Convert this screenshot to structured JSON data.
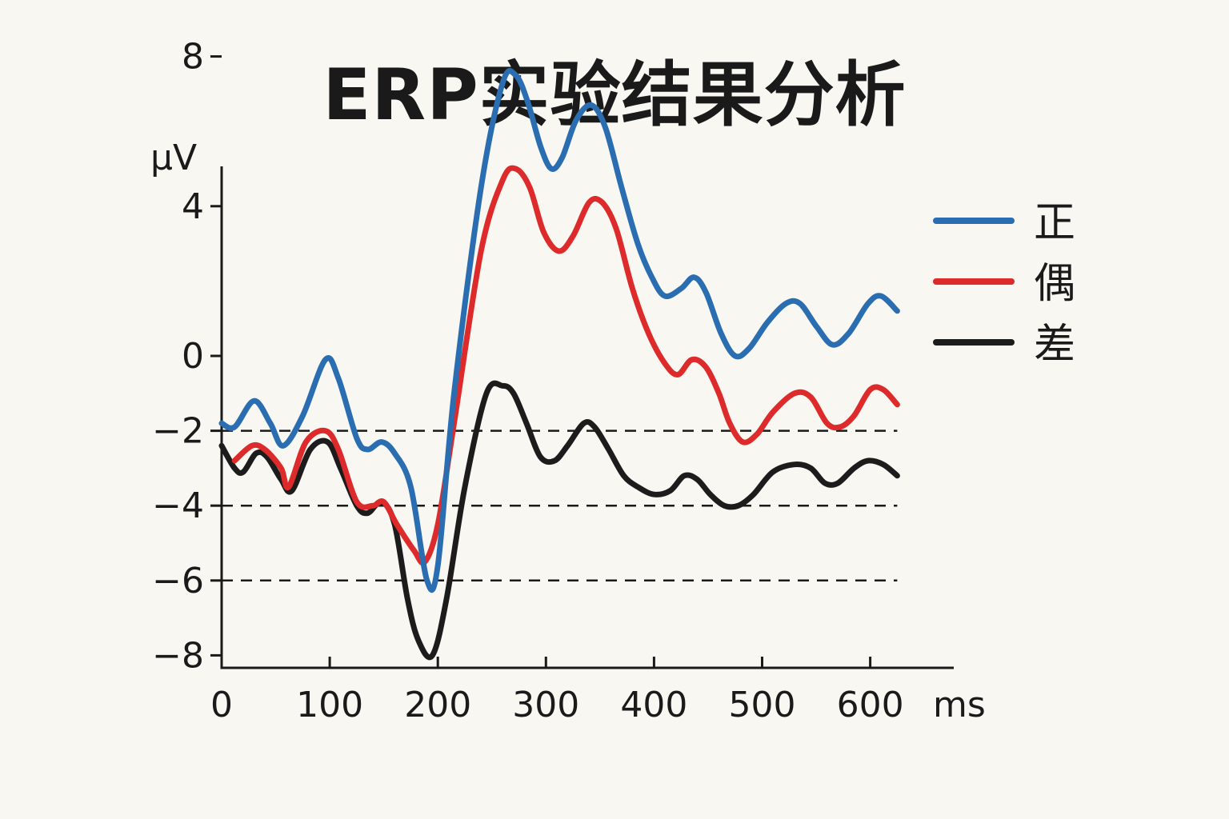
{
  "chart_data": {
    "type": "line",
    "title": "ERP实验结果分析",
    "xlabel": "ms",
    "ylabel": "μV",
    "xlim": [
      0,
      625
    ],
    "ylim": [
      -8,
      9
    ],
    "x_ticks": [
      0,
      100,
      200,
      300,
      400,
      500,
      600
    ],
    "x_tick_labels": [
      "0",
      "100",
      "200",
      "300",
      "400",
      "500",
      "600"
    ],
    "y_ticks": [
      8,
      4,
      0,
      -2,
      -4,
      -6,
      -8
    ],
    "y_tick_labels": [
      "8",
      "4",
      "0",
      "−2",
      "−4",
      "−6",
      "−8"
    ],
    "reference_lines": [
      -2,
      -4,
      -6
    ],
    "legend_position": "right",
    "series": [
      {
        "name": "正",
        "color": "#2a6db0",
        "points": [
          [
            0,
            -1.8
          ],
          [
            12,
            -1.9
          ],
          [
            30,
            -1.2
          ],
          [
            45,
            -1.8
          ],
          [
            57,
            -2.4
          ],
          [
            75,
            -1.6
          ],
          [
            96,
            -0.1
          ],
          [
            108,
            -0.6
          ],
          [
            125,
            -2.2
          ],
          [
            135,
            -2.5
          ],
          [
            148,
            -2.3
          ],
          [
            160,
            -2.6
          ],
          [
            175,
            -3.5
          ],
          [
            190,
            -6.0
          ],
          [
            200,
            -5.6
          ],
          [
            215,
            -1.0
          ],
          [
            240,
            4.5
          ],
          [
            260,
            7.3
          ],
          [
            272,
            7.5
          ],
          [
            283,
            6.8
          ],
          [
            295,
            5.6
          ],
          [
            305,
            5.0
          ],
          [
            315,
            5.3
          ],
          [
            328,
            6.3
          ],
          [
            342,
            6.7
          ],
          [
            355,
            6.1
          ],
          [
            370,
            4.5
          ],
          [
            385,
            3.0
          ],
          [
            398,
            2.1
          ],
          [
            410,
            1.6
          ],
          [
            425,
            1.8
          ],
          [
            437,
            2.1
          ],
          [
            448,
            1.7
          ],
          [
            462,
            0.6
          ],
          [
            475,
            0.0
          ],
          [
            488,
            0.2
          ],
          [
            505,
            0.9
          ],
          [
            522,
            1.4
          ],
          [
            535,
            1.4
          ],
          [
            550,
            0.8
          ],
          [
            565,
            0.3
          ],
          [
            580,
            0.6
          ],
          [
            598,
            1.4
          ],
          [
            610,
            1.6
          ],
          [
            625,
            1.2
          ]
        ]
      },
      {
        "name": "偶",
        "color": "#dd2b2b",
        "points": [
          [
            12,
            -2.8
          ],
          [
            28,
            -2.4
          ],
          [
            40,
            -2.5
          ],
          [
            55,
            -3.0
          ],
          [
            62,
            -3.5
          ],
          [
            78,
            -2.3
          ],
          [
            96,
            -2.0
          ],
          [
            108,
            -2.5
          ],
          [
            125,
            -3.9
          ],
          [
            140,
            -4.0
          ],
          [
            150,
            -3.9
          ],
          [
            162,
            -4.5
          ],
          [
            178,
            -5.2
          ],
          [
            188,
            -5.5
          ],
          [
            200,
            -4.5
          ],
          [
            215,
            -1.8
          ],
          [
            240,
            2.8
          ],
          [
            260,
            4.7
          ],
          [
            272,
            5.0
          ],
          [
            285,
            4.5
          ],
          [
            298,
            3.3
          ],
          [
            312,
            2.8
          ],
          [
            325,
            3.2
          ],
          [
            340,
            4.1
          ],
          [
            352,
            4.1
          ],
          [
            365,
            3.4
          ],
          [
            380,
            1.8
          ],
          [
            395,
            0.6
          ],
          [
            410,
            -0.2
          ],
          [
            422,
            -0.5
          ],
          [
            435,
            -0.1
          ],
          [
            448,
            -0.3
          ],
          [
            460,
            -1.0
          ],
          [
            470,
            -1.8
          ],
          [
            482,
            -2.3
          ],
          [
            495,
            -2.1
          ],
          [
            510,
            -1.5
          ],
          [
            530,
            -1.0
          ],
          [
            545,
            -1.1
          ],
          [
            560,
            -1.8
          ],
          [
            572,
            -1.9
          ],
          [
            585,
            -1.6
          ],
          [
            600,
            -0.9
          ],
          [
            612,
            -0.9
          ],
          [
            625,
            -1.3
          ]
        ]
      },
      {
        "name": "差",
        "color": "#1c1c1c",
        "points": [
          [
            0,
            -2.4
          ],
          [
            12,
            -3.0
          ],
          [
            20,
            -3.1
          ],
          [
            32,
            -2.6
          ],
          [
            42,
            -2.7
          ],
          [
            55,
            -3.3
          ],
          [
            65,
            -3.6
          ],
          [
            82,
            -2.5
          ],
          [
            98,
            -2.3
          ],
          [
            110,
            -3.0
          ],
          [
            125,
            -4.0
          ],
          [
            135,
            -4.2
          ],
          [
            148,
            -3.9
          ],
          [
            160,
            -4.5
          ],
          [
            172,
            -6.5
          ],
          [
            182,
            -7.6
          ],
          [
            195,
            -8.0
          ],
          [
            208,
            -6.5
          ],
          [
            225,
            -3.5
          ],
          [
            245,
            -1.0
          ],
          [
            260,
            -0.8
          ],
          [
            270,
            -1.0
          ],
          [
            282,
            -1.8
          ],
          [
            295,
            -2.7
          ],
          [
            308,
            -2.8
          ],
          [
            320,
            -2.4
          ],
          [
            335,
            -1.8
          ],
          [
            345,
            -1.9
          ],
          [
            358,
            -2.5
          ],
          [
            372,
            -3.2
          ],
          [
            385,
            -3.5
          ],
          [
            400,
            -3.7
          ],
          [
            415,
            -3.6
          ],
          [
            428,
            -3.2
          ],
          [
            440,
            -3.3
          ],
          [
            452,
            -3.7
          ],
          [
            465,
            -4.0
          ],
          [
            478,
            -4.0
          ],
          [
            492,
            -3.7
          ],
          [
            510,
            -3.1
          ],
          [
            530,
            -2.9
          ],
          [
            545,
            -3.0
          ],
          [
            558,
            -3.4
          ],
          [
            570,
            -3.4
          ],
          [
            585,
            -3.0
          ],
          [
            598,
            -2.8
          ],
          [
            612,
            -2.9
          ],
          [
            625,
            -3.2
          ]
        ]
      }
    ]
  }
}
